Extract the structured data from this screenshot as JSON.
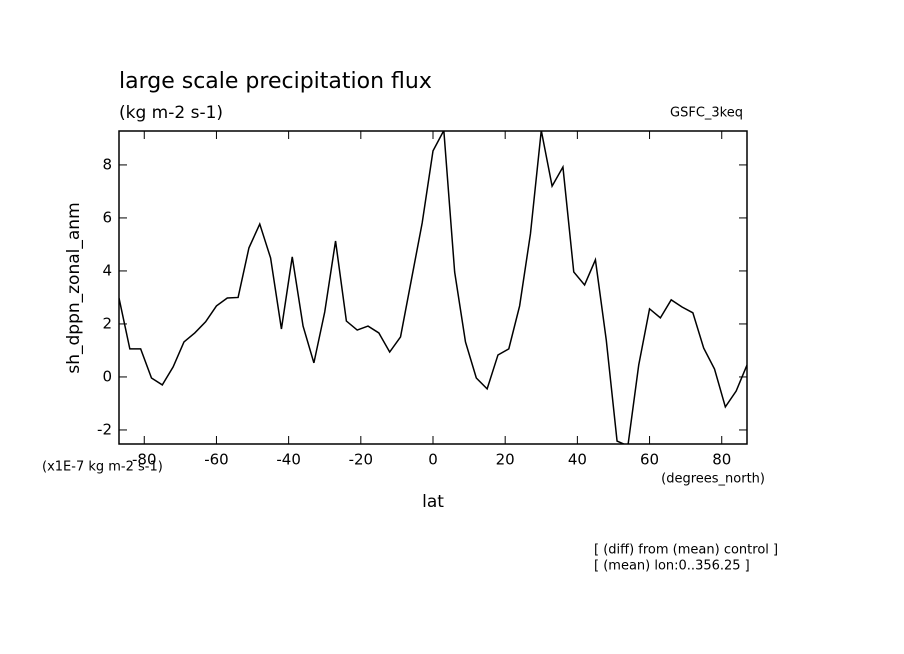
{
  "chart_data": {
    "type": "line",
    "title": "large scale precipitation flux",
    "subtitle": "(kg m-2 s-1)",
    "experiment": "GSFC_3keq",
    "y_label": "sh_dppn_zonal_anm",
    "y_units": "(x1E-7 kg m-2 s-1)",
    "x_label": "lat",
    "x_units": "(degrees_north)",
    "notes": [
      "[ (diff) from (mean) control ]",
      "[ (mean) lon:0..356.25 ]"
    ],
    "xlim": [
      -87,
      87
    ],
    "ylim": [
      -2.53,
      9.28
    ],
    "xticks": [
      -80,
      -60,
      -40,
      -20,
      0,
      20,
      40,
      60,
      80
    ],
    "yticks": [
      -2,
      0,
      2,
      4,
      6,
      8
    ],
    "color": "#000000",
    "x": [
      -87,
      -84,
      -81,
      -78,
      -75,
      -72,
      -69,
      -66,
      -63,
      -60,
      -57,
      -54,
      -51,
      -48,
      -45,
      -42,
      -39,
      -36,
      -33,
      -30,
      -27,
      -24,
      -21,
      -18,
      -15,
      -12,
      -9,
      -6,
      -3,
      0,
      3,
      6,
      9,
      12,
      15,
      18,
      21,
      24,
      27,
      30,
      33,
      36,
      39,
      42,
      45,
      48,
      51,
      54,
      57,
      60,
      63,
      66,
      69,
      72,
      75,
      78,
      81,
      84,
      87
    ],
    "values": [
      2.98,
      1.06,
      1.06,
      -0.04,
      -0.3,
      0.38,
      1.32,
      1.66,
      2.08,
      2.68,
      2.98,
      3.0,
      4.87,
      5.77,
      4.49,
      1.81,
      4.53,
      1.92,
      0.53,
      2.45,
      5.13,
      2.11,
      1.77,
      1.92,
      1.66,
      0.94,
      1.51,
      3.66,
      5.81,
      8.53,
      9.3,
      3.96,
      1.32,
      -0.04,
      -0.45,
      0.83,
      1.06,
      2.68,
      5.4,
      9.3,
      7.2,
      7.92,
      3.96,
      3.47,
      4.42,
      1.4,
      -2.42,
      -2.6,
      0.45,
      2.57,
      2.23,
      2.91,
      2.64,
      2.42,
      1.09,
      0.3,
      -1.13,
      -0.53,
      0.45
    ]
  }
}
